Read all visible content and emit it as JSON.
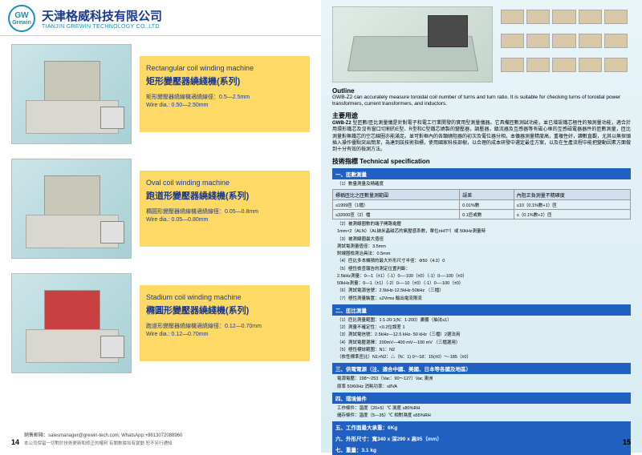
{
  "header": {
    "logo_text": "GW",
    "logo_sub": "Grewin",
    "company_cn": "天津格威科技有限公司",
    "company_en": "TIANJIN GREWIN TECHNOLOGY CO.,LTD"
  },
  "products": [
    {
      "title_en": "Rectangular coil winding machine",
      "title_cn": "矩形變壓器繞綫機(系列)",
      "spec_cn": "矩形變壓器繞線機適繞線徑：0.5—2.5mm",
      "spec_en": "Wire dia.: 0.50—2.50mm"
    },
    {
      "title_en": "Oval coil winding machine",
      "title_cn": "跑道形變壓器繞綫機(系列)",
      "spec_cn": "橢圓形變壓器繞線機適繞線徑：0.05—0.8mm",
      "spec_en": "Wire dia.: 0.05—0.80mm"
    },
    {
      "title_en": "Stadium coil winding machine",
      "title_cn": "橢圓形變壓器繞綫機(系列)",
      "spec_cn": "跑道形變壓器繞線機適繞線徑：0.12—0.70mm",
      "spec_en": "Wire dia.: 0.12—0.70mm"
    }
  ],
  "footer": {
    "page_left": "14",
    "page_right": "15",
    "disclaimer": "本公司保留一切對於技術更新和修正的權利 有關數據如有變動 恕不另行通知",
    "contact": "銷售郵箱：salesmanager@grewin-tech.com; WhatsApp:+8613072088960"
  },
  "right": {
    "outline_title": "Outline",
    "outline_text": "GWB-Z2 can accurately measure toroidal coil number of turns and turn ratio. It is suitable for checking turns of toroidal power transformers, current transformers, and inductors.",
    "usage_title": "主要用途",
    "model": "GWB-Z2",
    "usage_text": "型匝數/匝比測量儀是針對電子和電工行業開發的實用型測量儀器。它具備匝數測試功能，並已增設鐵芯極性的預測量功能，適合於用環形鐵芯及沒有窗口切割的E型、R型和C型鐵芯繞製的變壓器，調壓器，鎮流器及互感器等有磁心框的互感磁電器器件的匝數測量，匝比測量對無鐵芯的空芯線圈亦能滿足。並可對框內的各類繞阻器的初次及電位器分相，本儀器測量精度高，重複性好，讀數直觀，尤其以無探頭插入操作優點突出簡潔，為達到該技術指標，使用國家科技部樹，以合理的成本研發中選定最佳方案，以及在生產流程中能把變動因素方面做到十分有效的檢測方法。",
    "spec_title": "技術指標 Technical specification",
    "sections": {
      "s1": "一、匝數測量",
      "s1_sub1": "（1）數量測量及精確度",
      "s1_col1": "標稱匝比之匝數量測範圍",
      "s1_col2": "誤差",
      "s1_col3": "內阻正負測量不精確度",
      "s1_r1c1": "≤1999匝（1檔）",
      "s1_r1c2": "0.01%數",
      "s1_r1c3": "≤10（0.1%數+1）匝",
      "s1_r2c1": "≤32000匝（2）檔",
      "s1_r2c2": "0.1匝或數",
      "s1_r2c3": "≤（0.1%數+2）匝",
      "s1_item2": "（2）被測線圈數的端子開路電壓",
      "s1_item2_text": "1mm×2（ALN）（AL納米晶磁芯的氣壓感系數，單位nH/T²）或 50kHz測量時",
      "s1_item3": "（3）被測線圈最大值徑",
      "s1_item3_a": "測試電測量值徑：3.5mm",
      "s1_item3_b": "附線圈檢測治具法：0.5mm",
      "s1_item4": "（4）匝比多本機積的最大外形尺寸半徑：Φ50（4:3）0",
      "s1_item5": "（5）極性檢查報告的測定位置判斷：",
      "s1_item5_a": "2.5kHz測量：0—1（±1）（-1）0—-100（±0）（-1）0—-100（±0）",
      "s1_item5_b": "50kHz測量：0—1（±1）（-2）0—-10（±0）（-1）0—-100（±0）",
      "s1_item6": "（6）測試電源信號：2.5kHz-12.5kHz-50kHz （三檔）",
      "s1_item7": "（7）極性測量裝置：≤2Vrms 輸出電流限流",
      "s2": "二、匝比測量",
      "s2_1": "（1）匝比測量範圍：1:1-20:1(N：1-200）廣襲（抽法≤1）",
      "s2_2": "（2）測量不確定性：<0.2位誤差 1",
      "s2_3": "（3）測試電信號：2.5kHz—12.5 kHz- 50 kHz（三檔）2選法用",
      "s2_4": "（4）測試電壓選擇：200mV—400 mV—100 mV （三檔選用）",
      "s2_5": "（5）極性標誌範圍：N1：N2",
      "s2_5b": "（依性標準匝比）N1>N2：△（N：1) 0～18：15(±0）～-185（±0）",
      "s3": "三、供電電源（注、適合中國、美國、日本等各國及地區）",
      "s3_1": "電源電壓：198～253（Vac：90～127）Vac 澳洲",
      "s3_2": "原率 50/60Hz 消耗功率：≤8VA",
      "s4": "四、環境條件",
      "s4_1": "工作條件：溫度（20+5）℃ 濕度 ≤80%RH",
      "s4_2": "儲存條件：溫度（5—35）℃ 相對濕度 ≤65%RH",
      "s5": "五、工作面最大承重：6Kg",
      "s6": "六、外形尺寸：寬340 x 深290 x 高95（mm）",
      "s7": "七、重量：3.1 kg"
    }
  },
  "colors": {
    "primary_blue": "#1a3a8f",
    "accent_cyan": "#1a8fb8",
    "info_yellow": "#ffd966",
    "section_blue": "#2060c0",
    "right_bg": "#e8f4f8"
  }
}
